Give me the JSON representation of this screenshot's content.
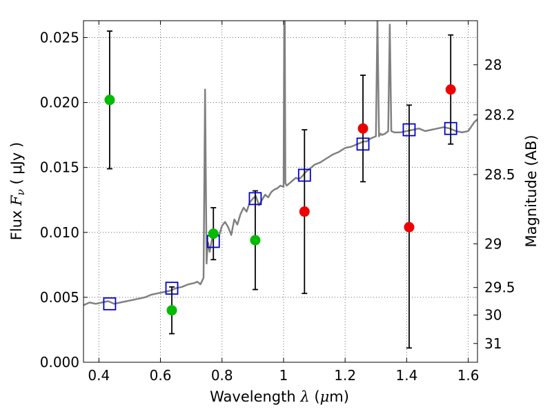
{
  "chart_data": {
    "type": "scatter",
    "title": "",
    "xlabel": "Wavelength",
    "xlabel_math": "λ",
    "xlabel_unit_open": "(",
    "xlabel_unit_math": "μ",
    "xlabel_unit_rest": "m)",
    "ylabel": "Flux",
    "ylabel_math": "F",
    "ylabel_math_sub": "ν",
    "ylabel_unit": "( μJy )",
    "y2label": "Magnitude (AB)",
    "xlim": [
      0.35,
      1.63
    ],
    "ylim": [
      0.0,
      0.0263
    ],
    "grid": true,
    "x_ticks": [
      0.4,
      0.6,
      0.8,
      1.0,
      1.2,
      1.4,
      1.6
    ],
    "x_tick_labels": [
      "0.4",
      "0.6",
      "0.8",
      "1",
      "1.2",
      "1.4",
      "1.6"
    ],
    "y_ticks": [
      0.0,
      0.005,
      0.01,
      0.015,
      0.02,
      0.025
    ],
    "y_tick_labels": [
      "0.000",
      "0.005",
      "0.010",
      "0.015",
      "0.020",
      "0.025"
    ],
    "y2_ticks": [
      28,
      28.2,
      28.5,
      29,
      29.5,
      30,
      31
    ],
    "y2_tick_labels": [
      "28",
      "28.2",
      "28.5",
      "29",
      "29.5",
      "30",
      "31"
    ],
    "colors": {
      "spectrum": "#808080",
      "green_points": "#00bb00",
      "red_points": "#ee0000",
      "model_squares": "#0000cc",
      "errorbars": "#000000",
      "grid": "#666666"
    },
    "spectrum": {
      "name": "",
      "x": [
        0.35,
        0.37,
        0.39,
        0.41,
        0.43,
        0.45,
        0.47,
        0.49,
        0.51,
        0.53,
        0.55,
        0.57,
        0.59,
        0.61,
        0.63,
        0.65,
        0.67,
        0.69,
        0.71,
        0.72,
        0.73,
        0.74,
        0.745,
        0.748,
        0.75,
        0.752,
        0.755,
        0.76,
        0.77,
        0.78,
        0.79,
        0.8,
        0.81,
        0.82,
        0.83,
        0.84,
        0.85,
        0.86,
        0.87,
        0.88,
        0.89,
        0.9,
        0.91,
        0.92,
        0.93,
        0.94,
        0.95,
        0.96,
        0.97,
        0.98,
        0.99,
        1.0,
        1.002,
        1.004,
        1.006,
        1.01,
        1.02,
        1.03,
        1.04,
        1.05,
        1.06,
        1.07,
        1.08,
        1.09,
        1.1,
        1.12,
        1.14,
        1.16,
        1.18,
        1.2,
        1.22,
        1.24,
        1.26,
        1.27,
        1.28,
        1.3,
        1.305,
        1.31,
        1.315,
        1.32,
        1.33,
        1.34,
        1.345,
        1.35,
        1.36,
        1.38,
        1.4,
        1.42,
        1.44,
        1.46,
        1.48,
        1.5,
        1.52,
        1.54,
        1.56,
        1.58,
        1.6,
        1.62,
        1.63
      ],
      "y": [
        0.0044,
        0.0046,
        0.0045,
        0.0046,
        0.0047,
        0.0045,
        0.0046,
        0.0047,
        0.0048,
        0.0049,
        0.005,
        0.0052,
        0.0053,
        0.0054,
        0.0055,
        0.0057,
        0.0058,
        0.006,
        0.0061,
        0.0062,
        0.006,
        0.0065,
        0.021,
        0.013,
        0.0076,
        0.0085,
        0.0092,
        0.0085,
        0.0098,
        0.0101,
        0.0097,
        0.0105,
        0.0108,
        0.0104,
        0.0098,
        0.011,
        0.0106,
        0.0114,
        0.0119,
        0.0116,
        0.0123,
        0.0126,
        0.0128,
        0.0121,
        0.0125,
        0.0129,
        0.0127,
        0.0131,
        0.0133,
        0.0134,
        0.0136,
        0.0135,
        0.026,
        0.0265,
        0.0138,
        0.0136,
        0.0138,
        0.014,
        0.0142,
        0.0141,
        0.0143,
        0.0146,
        0.0148,
        0.015,
        0.0152,
        0.0154,
        0.0157,
        0.016,
        0.0162,
        0.0165,
        0.0166,
        0.0168,
        0.017,
        0.017,
        0.0172,
        0.0174,
        0.0265,
        0.0174,
        0.0176,
        0.0175,
        0.0176,
        0.0178,
        0.026,
        0.0178,
        0.0177,
        0.0177,
        0.0178,
        0.0179,
        0.018,
        0.0178,
        0.0179,
        0.018,
        0.0181,
        0.018,
        0.0178,
        0.0177,
        0.0178,
        0.0185,
        0.0187
      ]
    },
    "green_points": {
      "name": "",
      "x": [
        0.435,
        0.637,
        0.772,
        0.908
      ],
      "y": [
        0.0202,
        0.004,
        0.0099,
        0.0094
      ],
      "yerr_low": [
        0.0149,
        0.0022,
        0.0079,
        0.0056
      ],
      "yerr_high": [
        0.0255,
        0.0058,
        0.0119,
        0.0132
      ]
    },
    "red_points": {
      "name": "",
      "x": [
        1.068,
        1.258,
        1.408,
        1.543
      ],
      "y": [
        0.0116,
        0.018,
        0.0104,
        0.021
      ],
      "yerr_low": [
        0.0053,
        0.0139,
        0.0011,
        0.0168
      ],
      "yerr_high": [
        0.0179,
        0.0221,
        0.0198,
        0.0252
      ]
    },
    "model_squares": {
      "name": "",
      "x": [
        0.435,
        0.637,
        0.772,
        0.908,
        1.068,
        1.258,
        1.408,
        1.543
      ],
      "y": [
        0.0045,
        0.0057,
        0.0093,
        0.0126,
        0.0144,
        0.0168,
        0.0179,
        0.018
      ]
    }
  }
}
